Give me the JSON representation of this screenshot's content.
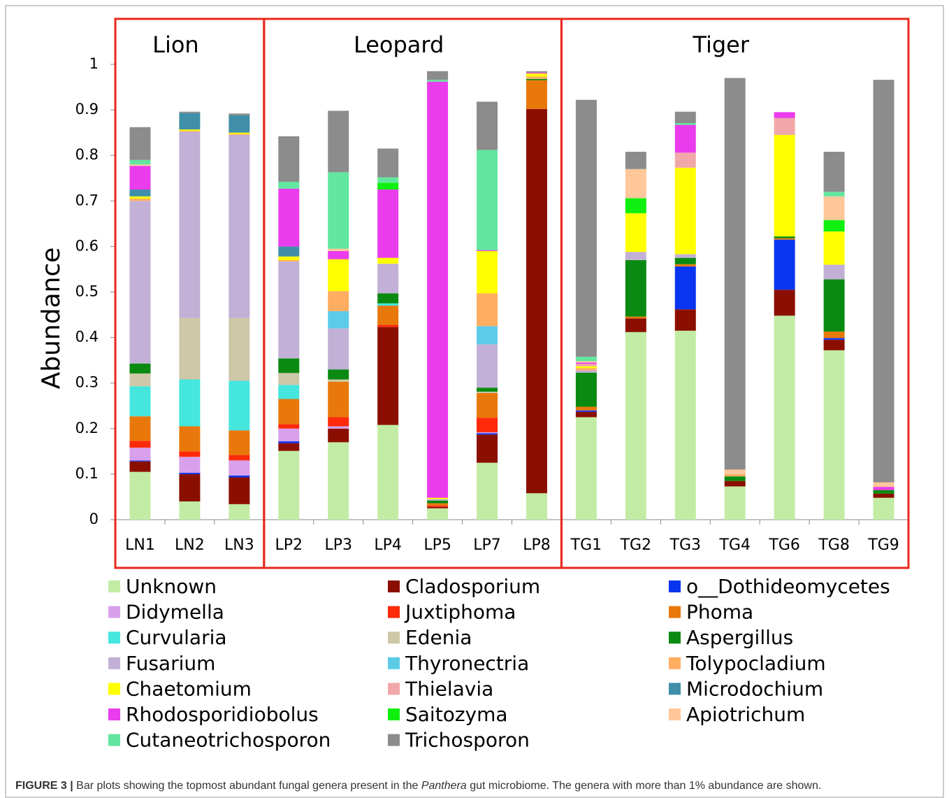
{
  "chart_data": {
    "type": "stacked_bar",
    "y_label": "Abundance",
    "categories": [
      "LN1",
      "LN2",
      "LN3",
      "LP2",
      "LP3",
      "LP4",
      "LP5",
      "LP7",
      "LP8",
      "TG1",
      "TG2",
      "TG3",
      "TG4",
      "TG6",
      "TG8",
      "TG9"
    ],
    "groups": [
      {
        "name": "Lion",
        "count": 3
      },
      {
        "name": "Leopard",
        "count": 6
      },
      {
        "name": "Tiger",
        "count": 7
      }
    ],
    "ylim": [
      0,
      1
    ],
    "yticks": [
      0,
      0.1,
      0.2,
      0.3,
      0.4,
      0.5,
      0.6,
      0.7,
      0.8,
      0.9,
      1
    ],
    "series": [
      {
        "name": "Unknown",
        "color": "#c2eca4",
        "values": [
          0.105,
          0.04,
          0.034,
          0.151,
          0.17,
          0.208,
          0.025,
          0.125,
          0.058,
          0.225,
          0.412,
          0.415,
          0.073,
          0.448,
          0.372,
          0.048
        ]
      },
      {
        "name": "Cladosporium",
        "color": "#8b0f00",
        "values": [
          0.023,
          0.06,
          0.059,
          0.017,
          0.03,
          0.215,
          0.003,
          0.062,
          0.844,
          0.012,
          0.03,
          0.047,
          0.012,
          0.057,
          0.023,
          0.009
        ]
      },
      {
        "name": "o__Dothideomycetes",
        "color": "#0a35f0",
        "values": [
          0.002,
          0.003,
          0.004,
          0.004,
          0,
          0,
          0,
          0.003,
          0,
          0.003,
          0,
          0.094,
          0,
          0.11,
          0.004,
          0
        ]
      },
      {
        "name": "Didymella",
        "color": "#d8a0ec",
        "values": [
          0.028,
          0.035,
          0.033,
          0.028,
          0.005,
          0,
          0,
          0.002,
          0,
          0,
          0,
          0,
          0,
          0,
          0,
          0
        ]
      },
      {
        "name": "Juxtiphoma",
        "color": "#ff2a0a",
        "values": [
          0.015,
          0.012,
          0.012,
          0.01,
          0.02,
          0.005,
          0.003,
          0.032,
          0,
          0,
          0,
          0,
          0,
          0,
          0,
          0
        ]
      },
      {
        "name": "Phoma",
        "color": "#e8780a",
        "values": [
          0.054,
          0.055,
          0.054,
          0.055,
          0.078,
          0.042,
          0.005,
          0.054,
          0.063,
          0.008,
          0.004,
          0.005,
          0,
          0.003,
          0.014,
          0
        ]
      },
      {
        "name": "Curvularia",
        "color": "#44e6de",
        "values": [
          0.066,
          0.103,
          0.109,
          0.031,
          0,
          0.005,
          0,
          0,
          0,
          0,
          0,
          0,
          0,
          0,
          0,
          0
        ]
      },
      {
        "name": "Edenia",
        "color": "#cec7a8",
        "values": [
          0.028,
          0.135,
          0.138,
          0.026,
          0.005,
          0,
          0,
          0.003,
          0,
          0,
          0,
          0,
          0,
          0,
          0,
          0
        ]
      },
      {
        "name": "Aspergillus",
        "color": "#0a8a10",
        "values": [
          0.022,
          0,
          0,
          0.032,
          0.022,
          0.022,
          0.006,
          0.009,
          0.003,
          0.075,
          0.124,
          0.014,
          0.01,
          0.004,
          0.115,
          0.008
        ]
      },
      {
        "name": "Fusarium",
        "color": "#c2b0d6",
        "values": [
          0.357,
          0.409,
          0.402,
          0.213,
          0.09,
          0.065,
          0.003,
          0.095,
          0,
          0.005,
          0.018,
          0.008,
          0,
          0,
          0.032,
          0
        ]
      },
      {
        "name": "Thyronectria",
        "color": "#5ccbe8",
        "values": [
          0,
          0,
          0,
          0,
          0.038,
          0,
          0,
          0.04,
          0,
          0,
          0,
          0,
          0,
          0,
          0,
          0
        ]
      },
      {
        "name": "Tolypocladium",
        "color": "#ffad60",
        "values": [
          0.005,
          0.002,
          0.002,
          0.003,
          0.044,
          0,
          0,
          0.072,
          0.005,
          0.005,
          0,
          0,
          0.005,
          0,
          0,
          0
        ]
      },
      {
        "name": "Chaetomium",
        "color": "#ffff00",
        "values": [
          0.005,
          0.003,
          0.003,
          0.008,
          0.07,
          0.013,
          0.003,
          0.093,
          0.007,
          0.004,
          0.085,
          0.19,
          0,
          0.223,
          0.073,
          0
        ]
      },
      {
        "name": "Thielavia",
        "color": "#f2a8a8",
        "values": [
          0,
          0,
          0,
          0,
          0,
          0,
          0,
          0,
          0,
          0.005,
          0,
          0.033,
          0,
          0.037,
          0,
          0
        ]
      },
      {
        "name": "Microdochium",
        "color": "#3f8fa8",
        "values": [
          0.015,
          0.036,
          0.038,
          0.022,
          0,
          0,
          0,
          0,
          0,
          0,
          0,
          0,
          0,
          0,
          0,
          0
        ]
      },
      {
        "name": "Rhodosporidiobolus",
        "color": "#ea3cec",
        "values": [
          0.052,
          0,
          0,
          0.127,
          0.018,
          0.15,
          0.914,
          0.002,
          0.002,
          0.003,
          0,
          0.061,
          0,
          0.013,
          0,
          0.007
        ]
      },
      {
        "name": "Saitozyma",
        "color": "#10f010",
        "values": [
          0,
          0,
          0,
          0,
          0,
          0.015,
          0,
          0,
          0,
          0,
          0.033,
          0,
          0,
          0,
          0.025,
          0
        ]
      },
      {
        "name": "Apiotrichum",
        "color": "#ffc79a",
        "values": [
          0.003,
          0,
          0,
          0,
          0.005,
          0,
          0,
          0,
          0,
          0.003,
          0.064,
          0,
          0.01,
          0,
          0.052,
          0.01
        ]
      },
      {
        "name": "Cutaneotrichosporon",
        "color": "#62e6a0",
        "values": [
          0.01,
          0,
          0,
          0.015,
          0.168,
          0.012,
          0.004,
          0.22,
          0,
          0.01,
          0,
          0.004,
          0,
          0,
          0.01,
          0
        ]
      },
      {
        "name": "Trichosporon",
        "color": "#8c8c8c",
        "values": [
          0.072,
          0.003,
          0.004,
          0.1,
          0.135,
          0.063,
          0.019,
          0.106,
          0.003,
          0.564,
          0.038,
          0.025,
          0.86,
          0,
          0.088,
          0.884
        ]
      }
    ]
  },
  "caption": {
    "label": "FIGURE 3 |",
    "text_before": " Bar plots showing the topmost abundant fungal genera present in the ",
    "italic": "Panthera",
    "text_after": " gut microbiome. The genera with more than 1% abundance are shown."
  }
}
